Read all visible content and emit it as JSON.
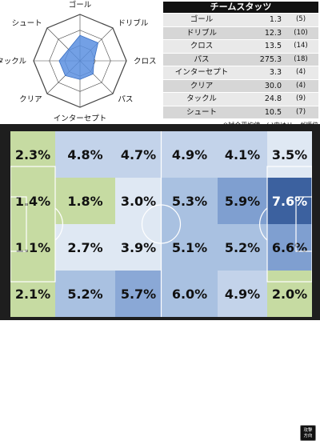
{
  "radar": {
    "axes": [
      "ゴール",
      "ドリブル",
      "クロス",
      "パス",
      "インターセプト",
      "クリア",
      "タックル",
      "シュート"
    ],
    "levels": [
      0.55,
      0.55,
      0.3,
      0.4,
      0.4,
      0.45,
      0.45,
      0.35
    ],
    "fill_color": "#5b8fe0",
    "grid_color": "#444444"
  },
  "stats": {
    "title": "チームスタッツ",
    "rows": [
      {
        "name": "ゴール",
        "value": "1.3",
        "rank": "(5)"
      },
      {
        "name": "ドリブル",
        "value": "12.3",
        "rank": "(10)"
      },
      {
        "name": "クロス",
        "value": "13.5",
        "rank": "(14)"
      },
      {
        "name": "パス",
        "value": "275.3",
        "rank": "(18)"
      },
      {
        "name": "インターセプト",
        "value": "3.3",
        "rank": "(4)"
      },
      {
        "name": "クリア",
        "value": "30.0",
        "rank": "(4)"
      },
      {
        "name": "タックル",
        "value": "24.8",
        "rank": "(9)"
      },
      {
        "name": "シュート",
        "value": "10.5",
        "rank": "(7)"
      }
    ],
    "note": "※試合平均値。( )内はリーグ順位"
  },
  "pitch": {
    "cells": [
      [
        "2.3%",
        "4.8%",
        "4.7%",
        "4.9%",
        "4.1%",
        "3.5%"
      ],
      [
        "1.4%",
        "1.8%",
        "3.0%",
        "5.3%",
        "5.9%",
        "7.6%"
      ],
      [
        "1.1%",
        "2.7%",
        "3.9%",
        "5.1%",
        "5.2%",
        "6.6%"
      ],
      [
        "2.1%",
        "5.2%",
        "5.7%",
        "6.0%",
        "4.9%",
        "2.0%"
      ]
    ],
    "cell_colors": [
      [
        "#c6dba2",
        "#c3d3ea",
        "#c3d3ea",
        "#c3d3ea",
        "#c3d3ea",
        "#dfe8f3"
      ],
      [
        "#c6dba2",
        "#c6dba2",
        "#dfe8f3",
        "#a9c1e1",
        "#7f9fd0",
        "#3c619f"
      ],
      [
        "#c6dba2",
        "#dfe8f3",
        "#dfe8f3",
        "#a9c1e1",
        "#a9c1e1",
        "#7f9fd0"
      ],
      [
        "#c6dba2",
        "#a9c1e1",
        "#8aa8d6",
        "#a9c1e1",
        "#c3d3ea",
        "#c6dba2"
      ]
    ],
    "dark_text_cells": [
      "1-5"
    ],
    "attack_direction": [
      "攻撃",
      "方向"
    ]
  }
}
